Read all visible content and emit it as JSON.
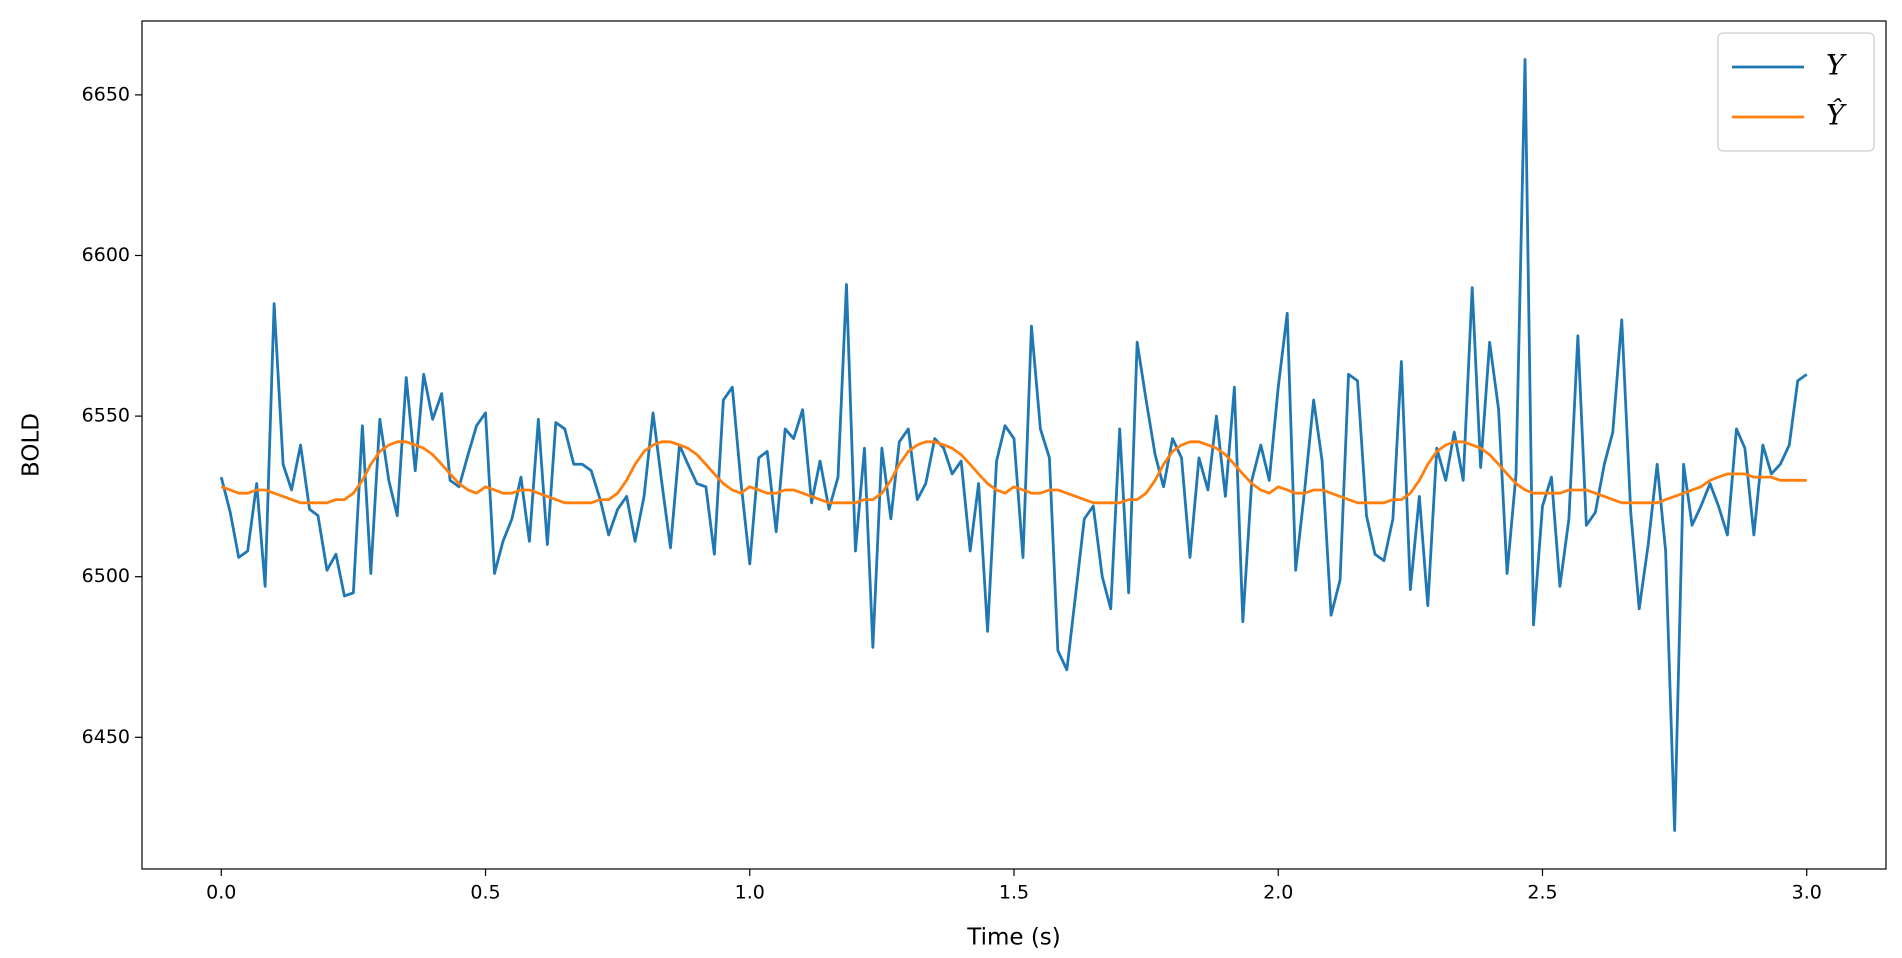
{
  "chart_data": {
    "type": "line",
    "x_label": "Time (s)",
    "y_label": "BOLD",
    "xlim": [
      -0.15,
      3.15
    ],
    "xticks": [
      {
        "value": 0,
        "label": "0.0"
      },
      0.5,
      {
        "value": 1,
        "label": "1.0"
      },
      1.5,
      {
        "value": 2,
        "label": "2.0"
      },
      2.5,
      {
        "value": 3,
        "label": "3.0"
      }
    ],
    "ylim": [
      6409,
      6673
    ],
    "yticks": [
      6450,
      6500,
      6550,
      6600,
      6650
    ],
    "grid": false,
    "legend": "upper right",
    "x": [
      0,
      0.017,
      0.033,
      0.05,
      0.067,
      0.083,
      0.1,
      0.117,
      0.133,
      0.15,
      0.167,
      0.183,
      0.2,
      0.217,
      0.233,
      0.25,
      0.267,
      0.283,
      0.3,
      0.317,
      0.333,
      0.35,
      0.367,
      0.383,
      0.4,
      0.417,
      0.433,
      0.45,
      0.467,
      0.483,
      0.5,
      0.517,
      0.533,
      0.55,
      0.567,
      0.583,
      0.6,
      0.617,
      0.633,
      0.65,
      0.667,
      0.683,
      0.7,
      0.717,
      0.733,
      0.75,
      0.767,
      0.783,
      0.8,
      0.817,
      0.833,
      0.85,
      0.867,
      0.883,
      0.9,
      0.917,
      0.933,
      0.95,
      0.967,
      0.983,
      1,
      1.017,
      1.033,
      1.05,
      1.067,
      1.083,
      1.1,
      1.117,
      1.133,
      1.15,
      1.167,
      1.183,
      1.2,
      1.217,
      1.233,
      1.25,
      1.267,
      1.283,
      1.3,
      1.317,
      1.333,
      1.35,
      1.367,
      1.383,
      1.4,
      1.417,
      1.433,
      1.45,
      1.467,
      1.483,
      1.5,
      1.517,
      1.533,
      1.55,
      1.567,
      1.583,
      1.6,
      1.617,
      1.633,
      1.65,
      1.667,
      1.683,
      1.7,
      1.717,
      1.733,
      1.75,
      1.767,
      1.783,
      1.8,
      1.817,
      1.833,
      1.85,
      1.867,
      1.883,
      1.9,
      1.917,
      1.933,
      1.95,
      1.967,
      1.983,
      2,
      2.017,
      2.033,
      2.05,
      2.067,
      2.083,
      2.1,
      2.117,
      2.133,
      2.15,
      2.167,
      2.183,
      2.2,
      2.217,
      2.233,
      2.25,
      2.267,
      2.283,
      2.3,
      2.317,
      2.333,
      2.35,
      2.367,
      2.383,
      2.4,
      2.417,
      2.433,
      2.45,
      2.467,
      2.483,
      2.5,
      2.517,
      2.533,
      2.55,
      2.567,
      2.583,
      2.6,
      2.617,
      2.633,
      2.65,
      2.667,
      2.683,
      2.7,
      2.717,
      2.733,
      2.75,
      2.767,
      2.783,
      2.8,
      2.817,
      2.833,
      2.85,
      2.867,
      2.883,
      2.9,
      2.917,
      2.933,
      2.95,
      2.967,
      2.983,
      3
    ],
    "series": [
      {
        "name": "Y",
        "color": "#1f77b4",
        "values": [
          6531,
          6520,
          6506,
          6508,
          6529,
          6497,
          6585,
          6535,
          6527,
          6541,
          6521,
          6519,
          6502,
          6507,
          6494,
          6495,
          6547,
          6501,
          6549,
          6530,
          6519,
          6562,
          6533,
          6563,
          6549,
          6557,
          6530,
          6528,
          6538,
          6547,
          6551,
          6501,
          6511,
          6518,
          6531,
          6511,
          6549,
          6510,
          6548,
          6546,
          6535,
          6535,
          6533,
          6524,
          6513,
          6521,
          6525,
          6511,
          6525,
          6551,
          6530,
          6509,
          6541,
          6535,
          6529,
          6528,
          6507,
          6555,
          6559,
          6530,
          6504,
          6537,
          6539,
          6514,
          6546,
          6543,
          6552,
          6523,
          6536,
          6521,
          6531,
          6591,
          6508,
          6540,
          6478,
          6540,
          6518,
          6542,
          6546,
          6524,
          6529,
          6543,
          6540,
          6532,
          6536,
          6508,
          6529,
          6483,
          6536,
          6547,
          6543,
          6506,
          6578,
          6546,
          6537,
          6477,
          6471,
          6495,
          6518,
          6522,
          6500,
          6490,
          6546,
          6495,
          6573,
          6555,
          6538,
          6528,
          6543,
          6537,
          6506,
          6537,
          6527,
          6550,
          6525,
          6559,
          6486,
          6530,
          6541,
          6530,
          6559,
          6582,
          6502,
          6527,
          6555,
          6536,
          6488,
          6499,
          6563,
          6561,
          6519,
          6507,
          6505,
          6518,
          6567,
          6496,
          6525,
          6491,
          6540,
          6530,
          6545,
          6530,
          6590,
          6534,
          6573,
          6552,
          6501,
          6532,
          6661,
          6485,
          6522,
          6531,
          6497,
          6518,
          6575,
          6516,
          6520,
          6535,
          6545,
          6580,
          6520,
          6490,
          6510,
          6535,
          6508,
          6421,
          6535,
          6516,
          6522,
          6529,
          6522,
          6513,
          6546,
          6540,
          6513,
          6541,
          6532,
          6535,
          6541,
          6561,
          6563
        ]
      },
      {
        "name": "Ŷ",
        "color": "#ff7f0e",
        "values": [
          6528,
          6527,
          6526,
          6526,
          6527,
          6527,
          6526,
          6525,
          6524,
          6523,
          6523,
          6523,
          6523,
          6524,
          6524,
          6526,
          6530,
          6535,
          6539,
          6541,
          6542,
          6542,
          6541,
          6540,
          6538,
          6535,
          6532,
          6529,
          6527,
          6526,
          6528,
          6527,
          6526,
          6526,
          6527,
          6527,
          6526,
          6525,
          6524,
          6523,
          6523,
          6523,
          6523,
          6524,
          6524,
          6526,
          6530,
          6535,
          6539,
          6541,
          6542,
          6542,
          6541,
          6540,
          6538,
          6535,
          6532,
          6529,
          6527,
          6526,
          6528,
          6527,
          6526,
          6526,
          6527,
          6527,
          6526,
          6525,
          6524,
          6523,
          6523,
          6523,
          6523,
          6524,
          6524,
          6526,
          6530,
          6535,
          6539,
          6541,
          6542,
          6542,
          6541,
          6540,
          6538,
          6535,
          6532,
          6529,
          6527,
          6526,
          6528,
          6527,
          6526,
          6526,
          6527,
          6527,
          6526,
          6525,
          6524,
          6523,
          6523,
          6523,
          6523,
          6524,
          6524,
          6526,
          6530,
          6535,
          6539,
          6541,
          6542,
          6542,
          6541,
          6540,
          6538,
          6535,
          6532,
          6529,
          6527,
          6526,
          6528,
          6527,
          6526,
          6526,
          6527,
          6527,
          6526,
          6525,
          6524,
          6523,
          6523,
          6523,
          6523,
          6524,
          6524,
          6526,
          6530,
          6535,
          6539,
          6541,
          6542,
          6542,
          6541,
          6540,
          6538,
          6535,
          6532,
          6529,
          6527,
          6526,
          6526,
          6526,
          6526,
          6527,
          6527,
          6527,
          6526,
          6525,
          6524,
          6523,
          6523,
          6523,
          6523,
          6523,
          6524,
          6525,
          6526,
          6527,
          6528,
          6530,
          6531,
          6532,
          6532,
          6532,
          6531,
          6531,
          6531,
          6530,
          6530,
          6530,
          6530
        ]
      }
    ]
  }
}
